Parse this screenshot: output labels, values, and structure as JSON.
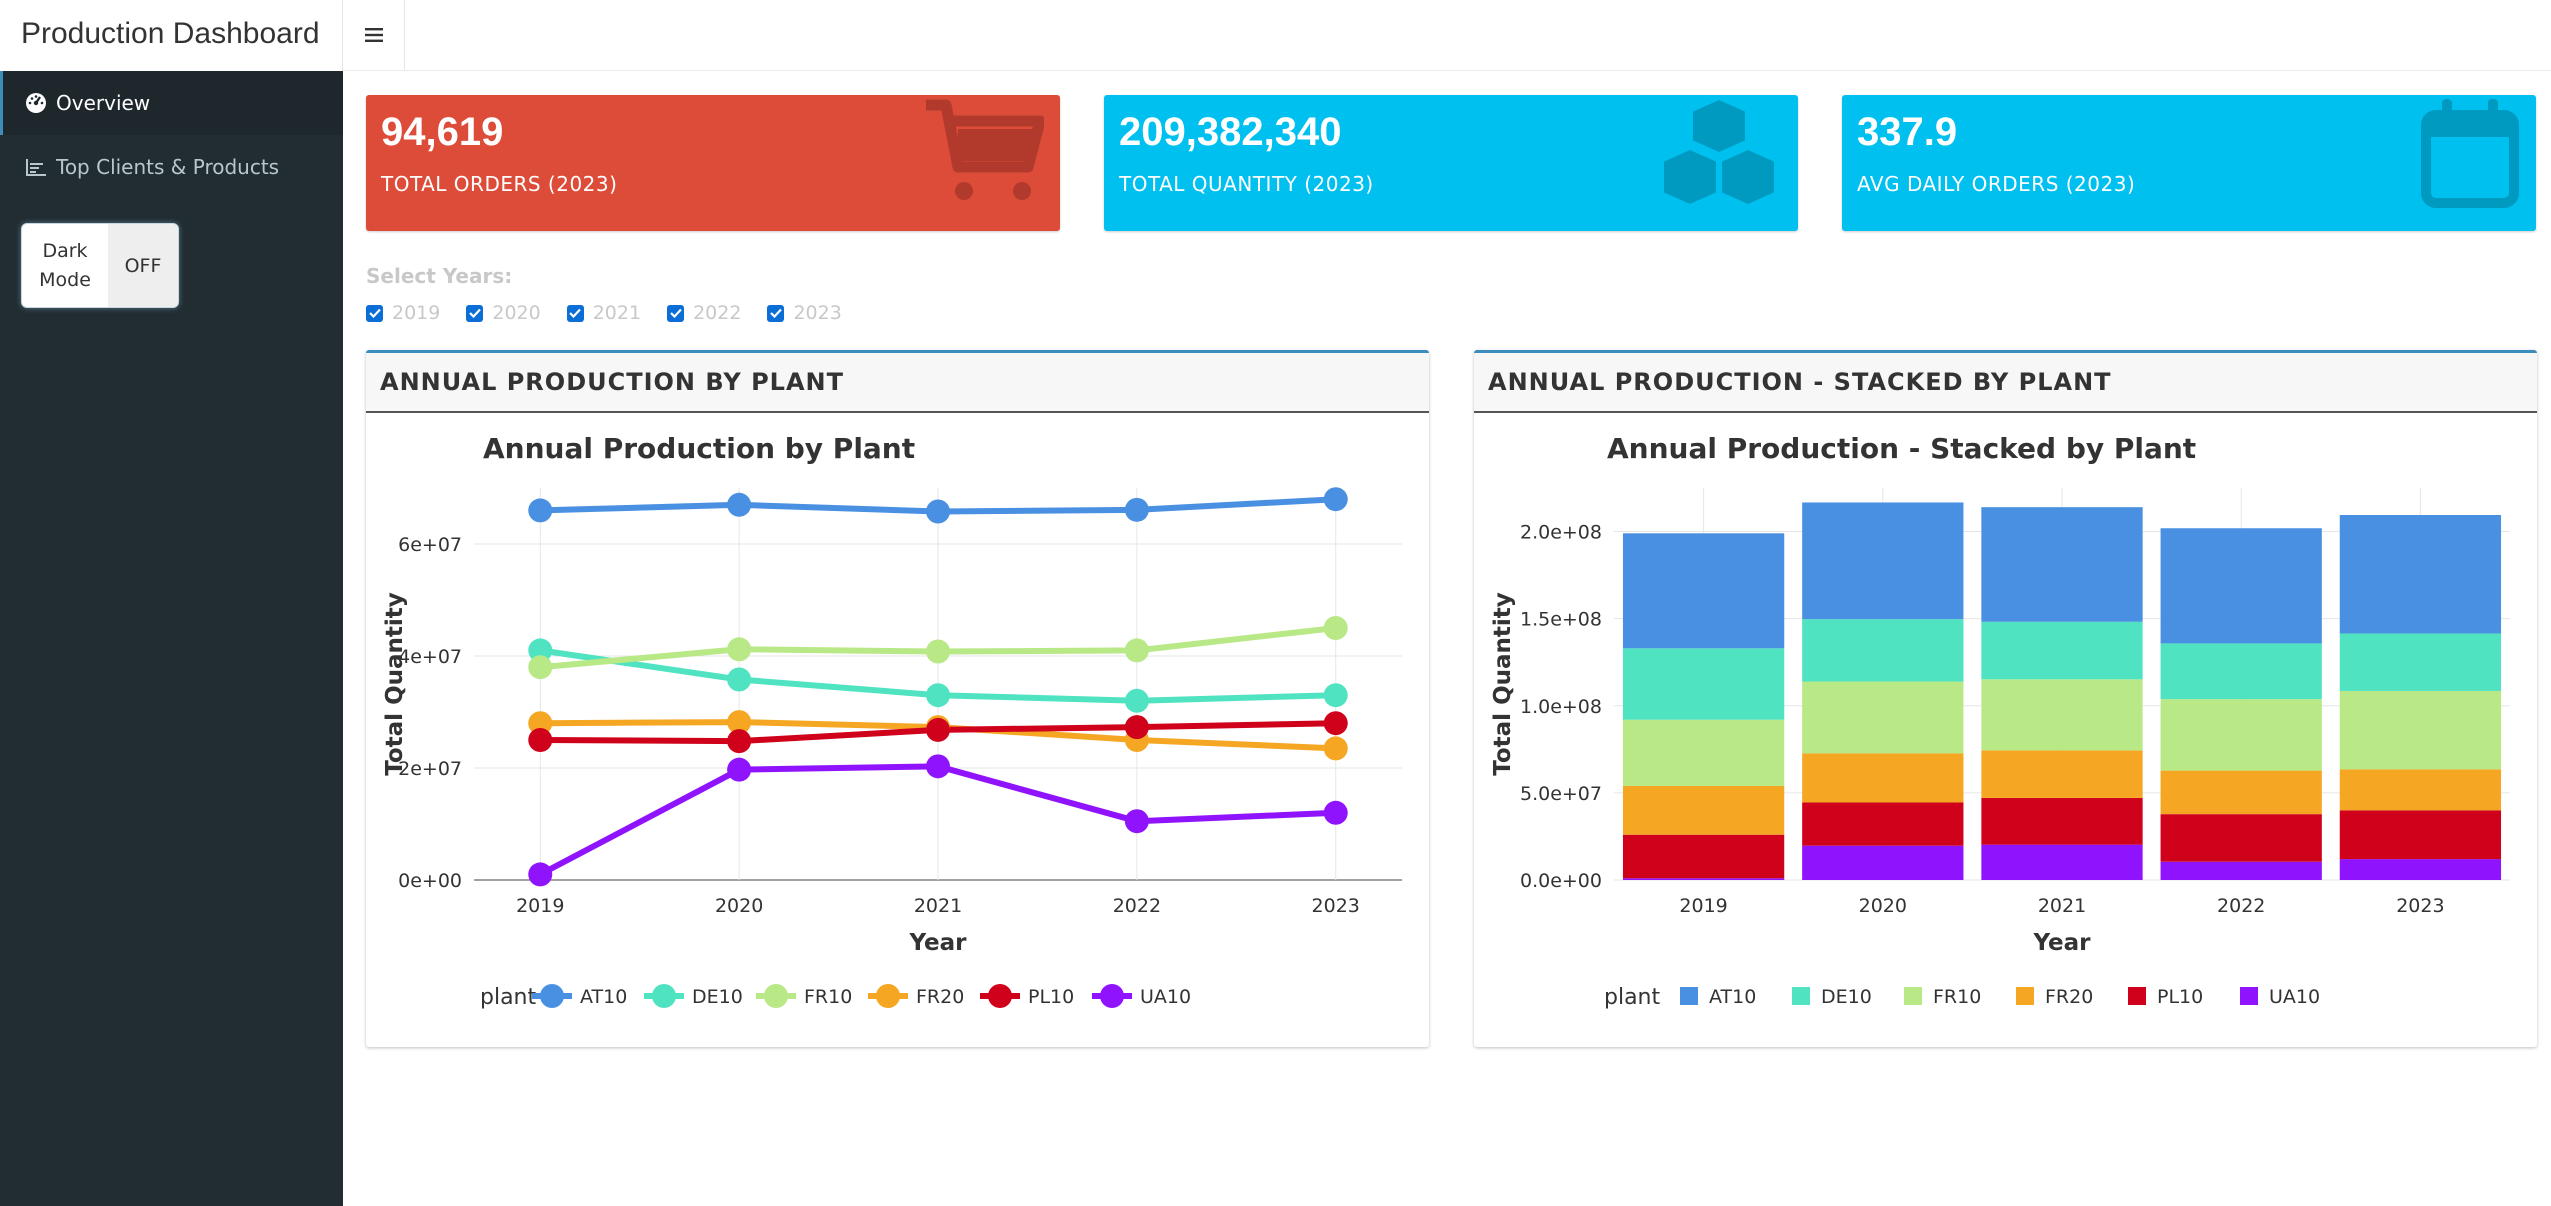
{
  "app": {
    "title": "Production Dashboard"
  },
  "sidebar": {
    "items": [
      {
        "label": "Overview",
        "icon": "dashboard-icon"
      },
      {
        "label": "Top Clients & Products",
        "icon": "line-chart-icon"
      }
    ],
    "dark_mode": {
      "label_line1": "Dark",
      "label_line2": "Mode",
      "state": "OFF"
    }
  },
  "kpis": [
    {
      "value": "94,619",
      "label": "TOTAL ORDERS (2023)",
      "color": "#dd4b39",
      "icon": "shopping-cart-icon"
    },
    {
      "value": "209,382,340",
      "label": "TOTAL QUANTITY (2023)",
      "color": "#00c0ef",
      "icon": "cubes-icon"
    },
    {
      "value": "337.9",
      "label": "AVG DAILY ORDERS (2023)",
      "color": "#00c0ef",
      "icon": "calendar-icon"
    }
  ],
  "year_filter": {
    "label": "Select Years:",
    "options": [
      {
        "label": "2019",
        "checked": true
      },
      {
        "label": "2020",
        "checked": true
      },
      {
        "label": "2021",
        "checked": true
      },
      {
        "label": "2022",
        "checked": true
      },
      {
        "label": "2023",
        "checked": true
      }
    ]
  },
  "panels": {
    "line_header": "ANNUAL PRODUCTION BY PLANT",
    "bar_header": "ANNUAL PRODUCTION - STACKED BY PLANT"
  },
  "chart_data": [
    {
      "type": "line",
      "title": "Annual Production by Plant",
      "xlabel": "Year",
      "ylabel": "Total Quantity",
      "legend_title": "plant",
      "legend_position": "bottom",
      "x": [
        2019,
        2020,
        2021,
        2022,
        2023
      ],
      "ylim": [
        0,
        70000000
      ],
      "yticks": [
        0,
        20000000,
        40000000,
        60000000
      ],
      "ytick_labels": [
        "0e+00",
        "2e+07",
        "4e+07",
        "6e+07"
      ],
      "xtick_labels": [
        "2019",
        "2020",
        "2021",
        "2022",
        "2023"
      ],
      "grid": true,
      "series": [
        {
          "name": "AT10",
          "color": "#4a90e2",
          "values": [
            66000000,
            67000000,
            65800000,
            66100000,
            68000000
          ]
        },
        {
          "name": "DE10",
          "color": "#50e3c2",
          "values": [
            41000000,
            35800000,
            33000000,
            32000000,
            33000000
          ]
        },
        {
          "name": "FR10",
          "color": "#b8e986",
          "values": [
            38000000,
            41200000,
            40800000,
            41000000,
            45000000
          ]
        },
        {
          "name": "FR20",
          "color": "#f5a623",
          "values": [
            28000000,
            28200000,
            27300000,
            25000000,
            23500000
          ]
        },
        {
          "name": "PL10",
          "color": "#d0021b",
          "values": [
            25000000,
            24800000,
            26800000,
            27300000,
            28000000
          ]
        },
        {
          "name": "UA10",
          "color": "#9013fe",
          "values": [
            1000000,
            19700000,
            20300000,
            10500000,
            12000000
          ]
        }
      ]
    },
    {
      "type": "bar",
      "stacked": true,
      "title": "Annual Production - Stacked by Plant",
      "xlabel": "Year",
      "ylabel": "Total Quantity",
      "legend_title": "plant",
      "legend_position": "bottom",
      "categories": [
        "2019",
        "2020",
        "2021",
        "2022",
        "2023"
      ],
      "ylim": [
        0,
        225000000
      ],
      "yticks": [
        0,
        50000000,
        100000000,
        150000000,
        200000000
      ],
      "ytick_labels": [
        "0.0e+00",
        "5.0e+07",
        "1.0e+08",
        "1.5e+08",
        "2.0e+08"
      ],
      "grid": true,
      "series": [
        {
          "name": "UA10",
          "color": "#9013fe",
          "values": [
            1000000,
            19700000,
            20300000,
            10500000,
            12000000
          ]
        },
        {
          "name": "PL10",
          "color": "#d0021b",
          "values": [
            25000000,
            24800000,
            26800000,
            27300000,
            28000000
          ]
        },
        {
          "name": "FR20",
          "color": "#f5a623",
          "values": [
            28000000,
            28200000,
            27300000,
            25000000,
            23500000
          ]
        },
        {
          "name": "FR10",
          "color": "#b8e986",
          "values": [
            38000000,
            41200000,
            40800000,
            41000000,
            45000000
          ]
        },
        {
          "name": "DE10",
          "color": "#50e3c2",
          "values": [
            41000000,
            35800000,
            33000000,
            32000000,
            33000000
          ]
        },
        {
          "name": "AT10",
          "color": "#4a90e2",
          "values": [
            66000000,
            67000000,
            65800000,
            66100000,
            68000000
          ]
        }
      ],
      "legend_order": [
        "AT10",
        "DE10",
        "FR10",
        "FR20",
        "PL10",
        "UA10"
      ]
    }
  ]
}
